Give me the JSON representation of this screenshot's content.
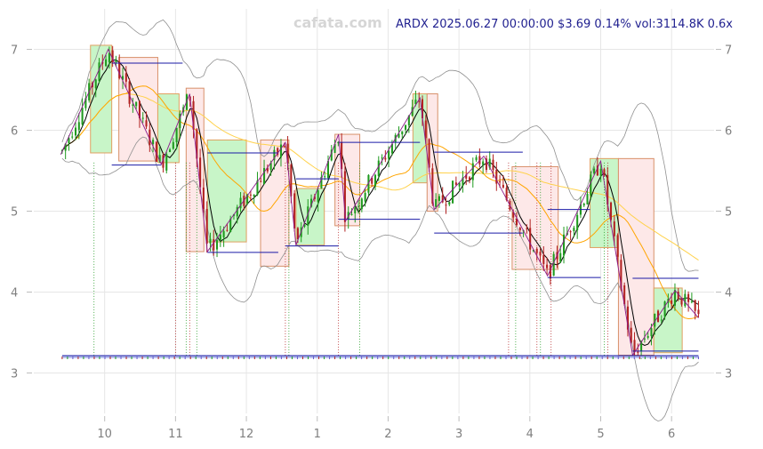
{
  "header": {
    "watermark": "cafata.com",
    "title": "ARDX 2025.06.27 00:00:00 $3.69 0.14% vol:3114.8K 0.6x"
  },
  "chart_data": {
    "type": "candlestick",
    "symbol": "ARDX",
    "date": "2025.06.27 00:00:00",
    "last_price": 3.69,
    "change_pct": 0.14,
    "volume": "3114.8K",
    "volume_ratio": "0.6x",
    "x_tick_labels": [
      "10",
      "11",
      "12",
      "1",
      "2",
      "3",
      "4",
      "5",
      "6"
    ],
    "y_ticks": [
      3,
      4,
      5,
      6,
      7
    ],
    "ylim": [
      2.5,
      7.5
    ],
    "grid": true,
    "overlays": [
      "moving-average-short",
      "moving-average-mid",
      "moving-average-long",
      "bollinger-bands",
      "trend-zigzag",
      "support-resistance-levels",
      "swing-boxes"
    ],
    "colors": {
      "up": "#1f9a1f",
      "down": "#b22222",
      "box_up_fill": "#c8f5c8",
      "box_down_fill": "#fde8e8",
      "ma_short": "#000000",
      "ma_mid": "#ffa500",
      "ma_long": "#ffd24d",
      "bands": "#909090",
      "zigzag": "#8b1a8b",
      "level": "#1a1aa6"
    },
    "boxes": [
      {
        "x0": 9.8,
        "x1": 10.1,
        "low": 5.72,
        "high": 7.05,
        "dir": "up"
      },
      {
        "x0": 10.2,
        "x1": 10.75,
        "low": 5.62,
        "high": 6.9,
        "dir": "down"
      },
      {
        "x0": 10.75,
        "x1": 11.05,
        "low": 5.6,
        "high": 6.45,
        "dir": "up"
      },
      {
        "x0": 11.15,
        "x1": 11.4,
        "low": 4.5,
        "high": 6.52,
        "dir": "down"
      },
      {
        "x0": 11.45,
        "x1": 12.0,
        "low": 4.62,
        "high": 5.88,
        "dir": "up"
      },
      {
        "x0": 12.2,
        "x1": 12.6,
        "low": 4.32,
        "high": 5.88,
        "dir": "down"
      },
      {
        "x0": 12.7,
        "x1": 13.1,
        "low": 4.58,
        "high": 5.28,
        "dir": "up"
      },
      {
        "x0": 13.25,
        "x1": 13.6,
        "low": 4.82,
        "high": 5.95,
        "dir": "down"
      },
      {
        "x0": 14.35,
        "x1": 14.55,
        "low": 5.35,
        "high": 6.45,
        "dir": "up"
      },
      {
        "x0": 14.55,
        "x1": 14.7,
        "low": 5.0,
        "high": 6.45,
        "dir": "down"
      },
      {
        "x0": 15.75,
        "x1": 16.4,
        "low": 4.28,
        "high": 5.55,
        "dir": "down"
      },
      {
        "x0": 16.85,
        "x1": 17.25,
        "low": 4.55,
        "high": 5.65,
        "dir": "up"
      },
      {
        "x0": 17.25,
        "x1": 17.75,
        "low": 3.22,
        "high": 5.65,
        "dir": "down"
      },
      {
        "x0": 17.75,
        "x1": 18.15,
        "low": 3.25,
        "high": 4.05,
        "dir": "up"
      }
    ],
    "zigzag_points": [
      {
        "x": 9.38,
        "y": 5.7
      },
      {
        "x": 10.05,
        "y": 7.0
      },
      {
        "x": 10.8,
        "y": 5.58
      },
      {
        "x": 11.2,
        "y": 6.45
      },
      {
        "x": 11.45,
        "y": 4.5
      },
      {
        "x": 12.55,
        "y": 5.85
      },
      {
        "x": 12.7,
        "y": 4.58
      },
      {
        "x": 13.3,
        "y": 5.95
      },
      {
        "x": 13.4,
        "y": 4.88
      },
      {
        "x": 14.45,
        "y": 6.4
      },
      {
        "x": 14.65,
        "y": 5.02
      },
      {
        "x": 15.35,
        "y": 5.68
      },
      {
        "x": 16.25,
        "y": 4.2
      },
      {
        "x": 17.0,
        "y": 5.62
      },
      {
        "x": 17.45,
        "y": 3.22
      },
      {
        "x": 18.05,
        "y": 4.02
      },
      {
        "x": 18.38,
        "y": 3.68
      }
    ],
    "level_lines": [
      {
        "x0": 10.1,
        "x1": 11.1,
        "y": 6.83
      },
      {
        "x0": 10.1,
        "x1": 10.8,
        "y": 5.57
      },
      {
        "x0": 11.45,
        "x1": 12.45,
        "y": 5.72
      },
      {
        "x0": 11.45,
        "x1": 12.45,
        "y": 4.49
      },
      {
        "x0": 12.7,
        "x1": 13.3,
        "y": 5.4
      },
      {
        "x0": 12.55,
        "x1": 13.3,
        "y": 4.57
      },
      {
        "x0": 13.3,
        "x1": 14.45,
        "y": 5.85
      },
      {
        "x0": 13.3,
        "x1": 14.45,
        "y": 4.9
      },
      {
        "x0": 14.65,
        "x1": 15.9,
        "y": 5.73
      },
      {
        "x0": 14.65,
        "x1": 15.9,
        "y": 4.73
      },
      {
        "x0": 16.25,
        "x1": 16.85,
        "y": 5.02
      },
      {
        "x0": 16.25,
        "x1": 17.0,
        "y": 4.18
      },
      {
        "x0": 17.45,
        "x1": 18.38,
        "y": 4.17
      },
      {
        "x0": 17.45,
        "x1": 18.38,
        "y": 3.27
      }
    ],
    "signal_markers_x": [
      9.85,
      11.0,
      11.15,
      11.2,
      11.3,
      12.55,
      12.6,
      13.3,
      13.6,
      15.7,
      15.8,
      16.1,
      16.15,
      16.3,
      17.05,
      17.1
    ],
    "x_domain": [
      9.0,
      18.6
    ]
  }
}
